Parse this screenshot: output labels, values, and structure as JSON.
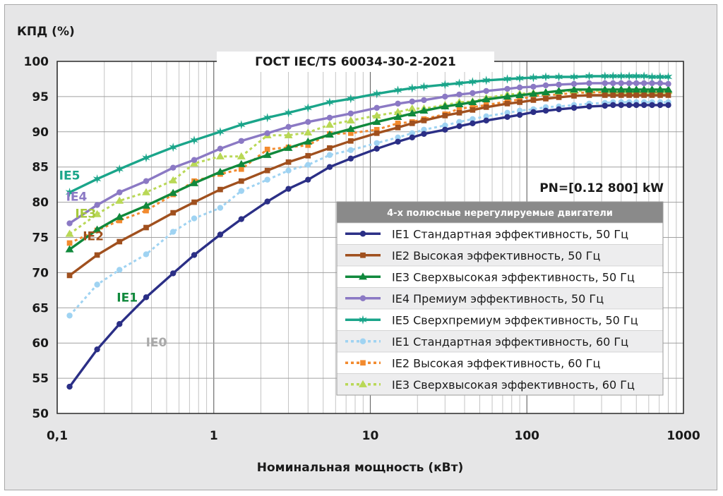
{
  "chart_data": {
    "type": "line",
    "title": "ГОСТ IEC/TS 60034-30-2-2021",
    "ylabel": "КПД (%)",
    "xlabel": "Номинальная мощность (кВт)",
    "x_scale": "log",
    "xlim": [
      0.1,
      1000
    ],
    "ylim": [
      50,
      100
    ],
    "x_ticks": [
      0.1,
      1,
      10,
      100,
      1000
    ],
    "x_tick_labels": [
      "0,1",
      "1",
      "10",
      "100",
      "1000"
    ],
    "y_ticks": [
      50,
      55,
      60,
      65,
      70,
      75,
      80,
      85,
      90,
      95,
      100
    ],
    "y_tick_labels": [
      "50",
      "55",
      "60",
      "65",
      "70",
      "75",
      "80",
      "85",
      "90",
      "95",
      "100"
    ],
    "power_range_note": "PN=[0.12 800] kW",
    "legend": {
      "header": "4-х полюсные нерегулируемые двигатели",
      "placement": "center-right"
    },
    "curve_labels": [
      {
        "text": "IE5",
        "x": 0.12,
        "y": 83.2,
        "color": "#1aa58a"
      },
      {
        "text": "IE4",
        "x": 0.133,
        "y": 80.2,
        "color": "#8b79c4"
      },
      {
        "text": "IE3",
        "x": 0.152,
        "y": 77.8,
        "color": "#a6c93c"
      },
      {
        "text": "IE2",
        "x": 0.17,
        "y": 74.6,
        "color": "#a0501e"
      },
      {
        "text": "IE1",
        "x": 0.28,
        "y": 65.9,
        "color": "#10893c"
      },
      {
        "text": "IE0",
        "x": 0.43,
        "y": 59.5,
        "color": "#a9a9a9"
      }
    ],
    "series": [
      {
        "name": "IE1 Стандартная эффективность, 50 Гц",
        "color": "#2b2f86",
        "dash": false,
        "marker": "circle",
        "x": [
          0.12,
          0.18,
          0.25,
          0.37,
          0.55,
          0.75,
          1.1,
          1.5,
          2.2,
          3,
          4,
          5.5,
          7.5,
          11,
          15,
          18.5,
          22,
          30,
          37,
          45,
          55,
          75,
          90,
          110,
          132,
          160,
          200,
          250,
          315,
          355,
          400,
          450,
          500,
          560,
          630,
          710,
          800
        ],
        "values": [
          53.8,
          59.1,
          62.7,
          66.5,
          69.9,
          72.5,
          75.4,
          77.6,
          80.1,
          81.9,
          83.2,
          85.0,
          86.2,
          87.6,
          88.6,
          89.2,
          89.7,
          90.3,
          90.8,
          91.2,
          91.6,
          92.1,
          92.4,
          92.8,
          93.0,
          93.2,
          93.4,
          93.6,
          93.7,
          93.8,
          93.8,
          93.8,
          93.8,
          93.8,
          93.8,
          93.8,
          93.8
        ]
      },
      {
        "name": "IE2 Высокая эффективность, 50 Гц",
        "color": "#a0501e",
        "dash": false,
        "marker": "square",
        "x": [
          0.12,
          0.18,
          0.25,
          0.37,
          0.55,
          0.75,
          1.1,
          1.5,
          2.2,
          3,
          4,
          5.5,
          7.5,
          11,
          15,
          18.5,
          22,
          30,
          37,
          45,
          55,
          75,
          90,
          110,
          132,
          160,
          200,
          250,
          315,
          355,
          400,
          450,
          500,
          560,
          630,
          710,
          800
        ],
        "values": [
          69.6,
          72.5,
          74.4,
          76.4,
          78.5,
          80.0,
          81.8,
          83.0,
          84.5,
          85.7,
          86.6,
          87.7,
          88.7,
          89.8,
          90.6,
          91.2,
          91.6,
          92.3,
          92.7,
          93.1,
          93.5,
          94.0,
          94.2,
          94.5,
          94.7,
          94.9,
          95.1,
          95.2,
          95.2,
          95.2,
          95.2,
          95.2,
          95.2,
          95.2,
          95.2,
          95.2,
          95.2
        ]
      },
      {
        "name": "IE3 Сверхвысокая эффективность, 50 Гц",
        "color": "#10893c",
        "dash": false,
        "marker": "triangle",
        "x": [
          0.12,
          0.18,
          0.25,
          0.37,
          0.55,
          0.75,
          1.1,
          1.5,
          2.2,
          3,
          4,
          5.5,
          7.5,
          11,
          15,
          18.5,
          22,
          30,
          37,
          45,
          55,
          75,
          90,
          110,
          132,
          160,
          200,
          250,
          315,
          355,
          400,
          450,
          500,
          560,
          630,
          710,
          800
        ],
        "values": [
          73.3,
          76.1,
          77.9,
          79.5,
          81.3,
          82.7,
          84.3,
          85.4,
          86.7,
          87.7,
          88.6,
          89.6,
          90.4,
          91.4,
          92.1,
          92.6,
          93.0,
          93.6,
          93.9,
          94.2,
          94.6,
          95.0,
          95.2,
          95.4,
          95.6,
          95.8,
          96.0,
          96.0,
          96.0,
          96.0,
          96.0,
          96.0,
          96.0,
          96.0,
          96.0,
          96.0,
          96.0
        ]
      },
      {
        "name": "IE4 Премиум эффективность, 50 Гц",
        "color": "#8b79c4",
        "dash": false,
        "marker": "circle",
        "x": [
          0.12,
          0.18,
          0.25,
          0.37,
          0.55,
          0.75,
          1.1,
          1.5,
          2.2,
          3,
          4,
          5.5,
          7.5,
          11,
          15,
          18.5,
          22,
          30,
          37,
          45,
          55,
          75,
          90,
          110,
          132,
          160,
          200,
          250,
          315,
          355,
          400,
          450,
          500,
          560,
          630,
          710,
          800
        ],
        "values": [
          77.0,
          79.6,
          81.4,
          83.0,
          84.9,
          86.0,
          87.6,
          88.7,
          89.8,
          90.7,
          91.4,
          92.0,
          92.6,
          93.4,
          94.0,
          94.3,
          94.5,
          95.0,
          95.3,
          95.5,
          95.8,
          96.1,
          96.3,
          96.4,
          96.6,
          96.7,
          96.8,
          96.9,
          96.9,
          96.9,
          96.9,
          96.9,
          96.9,
          96.9,
          96.9,
          96.9,
          96.8
        ]
      },
      {
        "name": "IE5 Сверхпремиум эффективность, 50 Гц",
        "color": "#1aa58a",
        "dash": false,
        "marker": "star",
        "x": [
          0.12,
          0.18,
          0.25,
          0.37,
          0.55,
          0.75,
          1.1,
          1.5,
          2.2,
          3,
          4,
          5.5,
          7.5,
          11,
          15,
          18.5,
          22,
          30,
          37,
          45,
          55,
          75,
          90,
          110,
          132,
          160,
          200,
          250,
          315,
          355,
          400,
          450,
          500,
          560,
          630,
          710,
          800
        ],
        "values": [
          81.4,
          83.3,
          84.7,
          86.3,
          87.8,
          88.8,
          90.0,
          91.0,
          92.0,
          92.7,
          93.4,
          94.2,
          94.7,
          95.4,
          95.9,
          96.2,
          96.4,
          96.7,
          96.9,
          97.1,
          97.3,
          97.5,
          97.6,
          97.7,
          97.8,
          97.8,
          97.8,
          97.9,
          97.9,
          97.9,
          97.9,
          97.9,
          97.9,
          97.9,
          97.8,
          97.8,
          97.8
        ]
      },
      {
        "name": "IE1 Стандартная эффективность, 60 Гц",
        "color": "#9fd3f2",
        "dash": true,
        "marker": "circle",
        "x": [
          0.12,
          0.18,
          0.25,
          0.37,
          0.55,
          0.75,
          1.1,
          1.5,
          2.2,
          3,
          4,
          5.5,
          7.5,
          11,
          15,
          18.5,
          22,
          30,
          37,
          45,
          55,
          75,
          90,
          110,
          132,
          160,
          200,
          250,
          315,
          355,
          400,
          450,
          500,
          560,
          630,
          710,
          800
        ],
        "values": [
          63.9,
          68.3,
          70.4,
          72.6,
          75.8,
          77.7,
          79.2,
          81.6,
          83.2,
          84.5,
          85.3,
          86.7,
          87.4,
          88.4,
          89.2,
          89.8,
          90.3,
          90.9,
          91.4,
          91.8,
          92.2,
          92.7,
          93.0,
          93.2,
          93.5,
          93.6,
          93.8,
          94.0,
          94.1,
          94.2,
          94.2,
          94.2,
          94.2,
          94.2,
          94.2,
          94.2,
          94.2
        ]
      },
      {
        "name": "IE2 Высокая эффективность, 60 Гц",
        "color": "#f28a2e",
        "dash": true,
        "marker": "square",
        "x": [
          0.12,
          0.18,
          0.25,
          0.37,
          0.55,
          0.75,
          1.1,
          1.5,
          2.2,
          3,
          4,
          5.5,
          7.5,
          11,
          15,
          18.5,
          22,
          30,
          37,
          45,
          55,
          75,
          90,
          110,
          132,
          160,
          200,
          250,
          315,
          355,
          400,
          450,
          500,
          560,
          630,
          710,
          800
        ],
        "values": [
          74.2,
          76.0,
          77.4,
          78.8,
          81.1,
          83.0,
          84.0,
          84.7,
          87.5,
          87.8,
          88.1,
          89.7,
          89.8,
          90.3,
          91.2,
          91.4,
          91.8,
          92.5,
          93.3,
          93.5,
          93.8,
          94.3,
          94.6,
          95.1,
          95.2,
          95.3,
          95.5,
          95.6,
          95.6,
          95.6,
          95.6,
          95.6,
          95.6,
          95.6,
          95.6,
          95.6,
          95.6
        ]
      },
      {
        "name": "IE3 Сверхвысокая эффективность, 60 Гц",
        "color": "#b9d856",
        "dash": true,
        "marker": "triangle",
        "x": [
          0.12,
          0.18,
          0.25,
          0.37,
          0.55,
          0.75,
          1.1,
          1.5,
          2.2,
          3,
          4,
          5.5,
          7.5,
          11,
          15,
          18.5,
          22,
          30,
          37,
          45,
          55,
          75,
          90,
          110,
          132,
          160,
          200,
          250,
          315,
          355,
          400,
          450,
          500,
          560,
          630,
          710,
          800
        ],
        "values": [
          75.5,
          78.3,
          80.2,
          81.4,
          83.1,
          85.5,
          86.5,
          86.5,
          89.5,
          89.5,
          89.9,
          91.0,
          91.6,
          92.3,
          92.8,
          93.3,
          93.3,
          93.8,
          94.2,
          94.3,
          94.8,
          95.3,
          95.4,
          95.5,
          95.6,
          95.7,
          95.8,
          95.8,
          95.8,
          95.8,
          95.8,
          95.8,
          95.8,
          95.8,
          95.8,
          95.8,
          95.8
        ]
      }
    ]
  }
}
